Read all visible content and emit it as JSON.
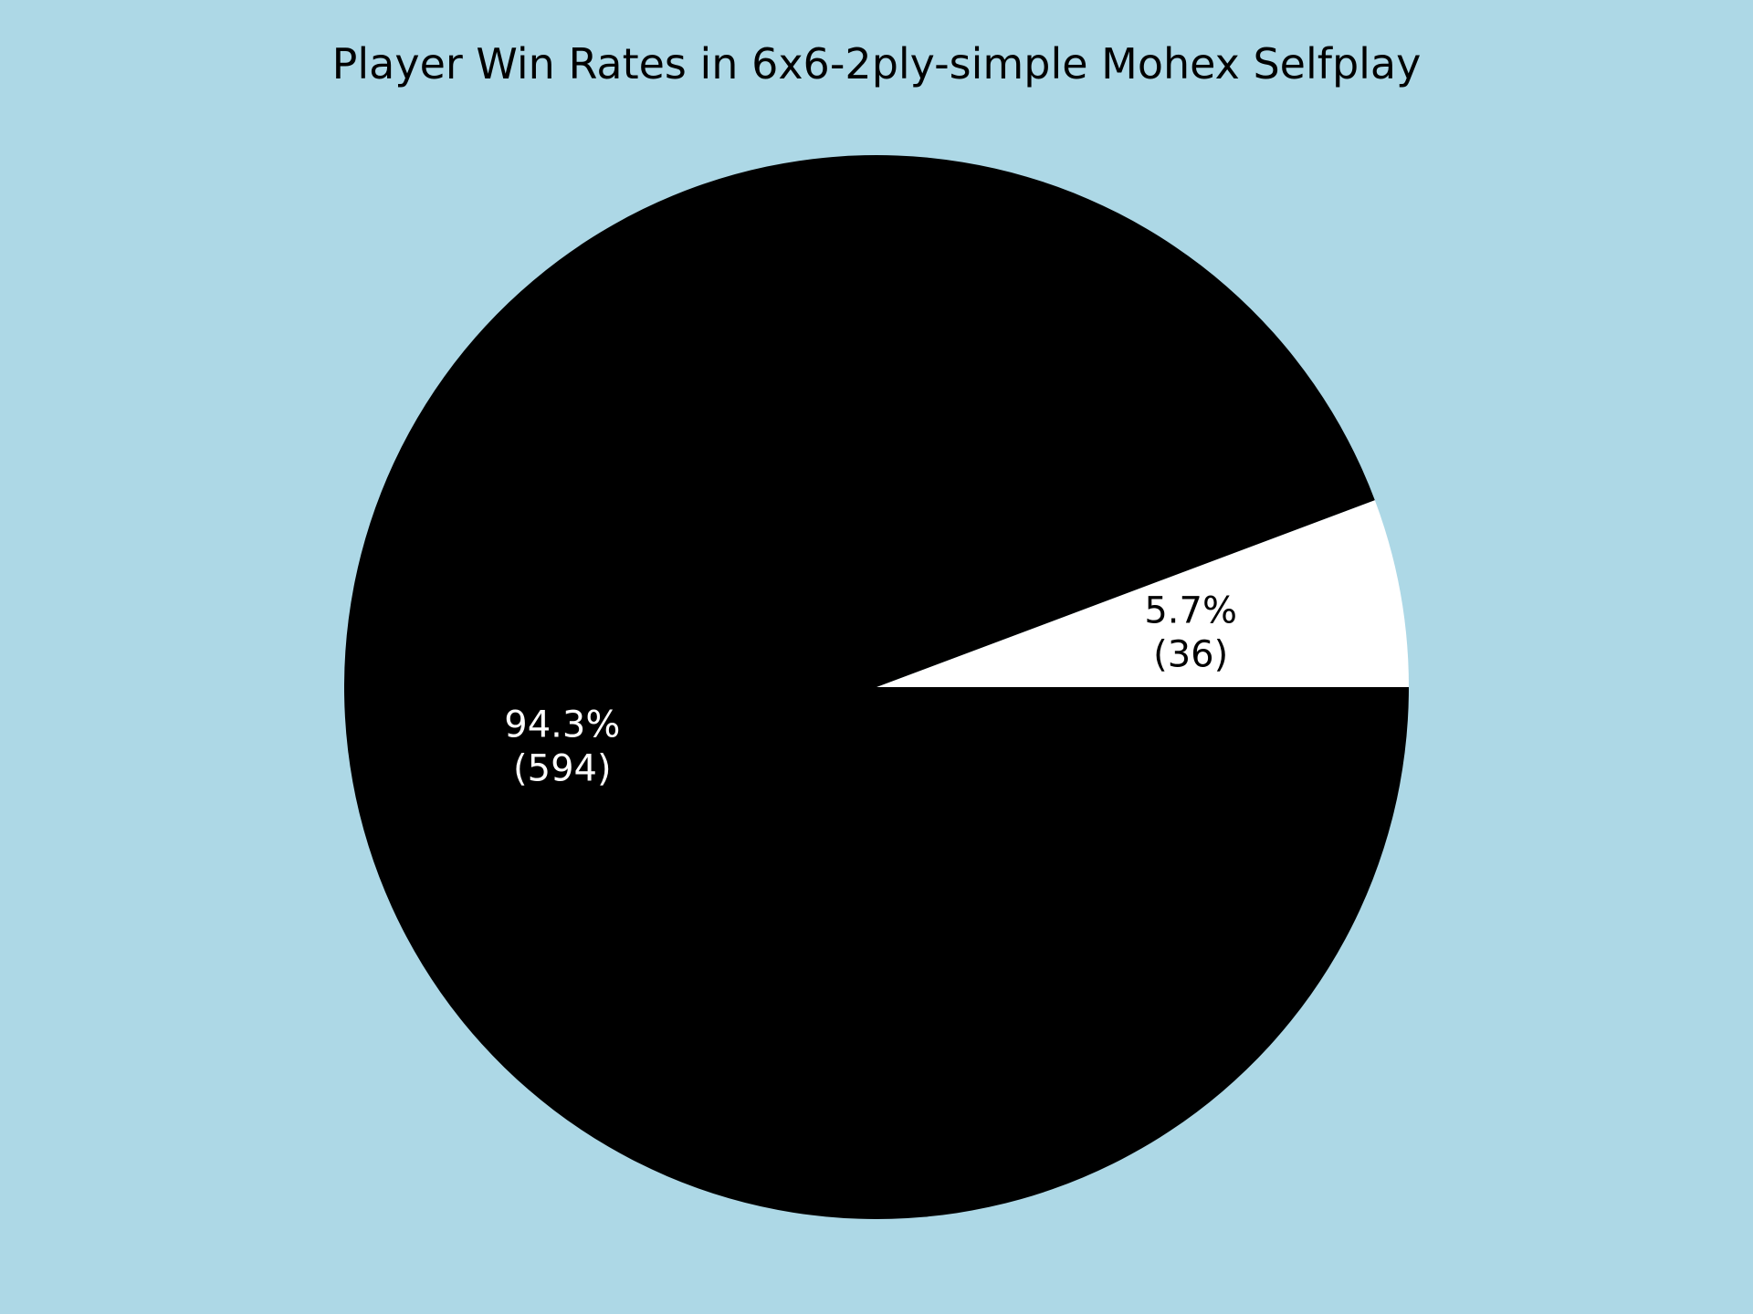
{
  "chart_data": {
    "type": "pie",
    "title": "Player Win Rates in 6x6-2ply-simple Mohex Selfplay",
    "start_angle_deg": 0,
    "direction": "counterclockwise",
    "background_color": "#add8e6",
    "slices": [
      {
        "value": 36,
        "percent_label": "5.7%",
        "count_label": "(36)",
        "color": "#ffffff",
        "label_color": "#000000"
      },
      {
        "value": 594,
        "percent_label": "94.3%",
        "count_label": "(594)",
        "color": "#000000",
        "label_color": "#ffffff"
      }
    ]
  }
}
